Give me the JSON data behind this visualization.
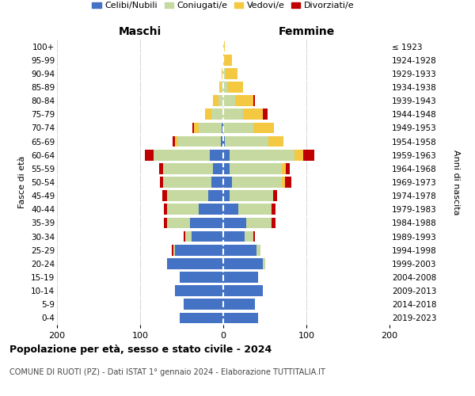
{
  "age_groups": [
    "0-4",
    "5-9",
    "10-14",
    "15-19",
    "20-24",
    "25-29",
    "30-34",
    "35-39",
    "40-44",
    "45-49",
    "50-54",
    "55-59",
    "60-64",
    "65-69",
    "70-74",
    "75-79",
    "80-84",
    "85-89",
    "90-94",
    "95-99",
    "100+"
  ],
  "birth_years": [
    "2019-2023",
    "2014-2018",
    "2009-2013",
    "2004-2008",
    "1999-2003",
    "1994-1998",
    "1989-1993",
    "1984-1988",
    "1979-1983",
    "1974-1978",
    "1969-1973",
    "1964-1968",
    "1959-1963",
    "1954-1958",
    "1949-1953",
    "1944-1948",
    "1939-1943",
    "1934-1938",
    "1929-1933",
    "1924-1928",
    "≤ 1923"
  ],
  "maschi_celibi": [
    52,
    48,
    58,
    52,
    68,
    58,
    38,
    40,
    30,
    18,
    14,
    12,
    16,
    3,
    2,
    0,
    0,
    0,
    0,
    0,
    0
  ],
  "maschi_coniugati": [
    0,
    0,
    0,
    0,
    0,
    2,
    8,
    28,
    38,
    50,
    58,
    60,
    68,
    52,
    28,
    14,
    6,
    3,
    1,
    0,
    0
  ],
  "maschi_vedovi": [
    0,
    0,
    0,
    0,
    0,
    0,
    0,
    0,
    0,
    0,
    0,
    0,
    0,
    3,
    5,
    8,
    6,
    2,
    1,
    0,
    0
  ],
  "maschi_divorziati": [
    0,
    0,
    0,
    0,
    0,
    2,
    2,
    3,
    3,
    5,
    4,
    5,
    10,
    3,
    2,
    0,
    0,
    0,
    0,
    0,
    0
  ],
  "femmine_nubili": [
    42,
    38,
    48,
    42,
    48,
    40,
    26,
    28,
    18,
    8,
    10,
    8,
    8,
    2,
    0,
    0,
    0,
    0,
    0,
    0,
    0
  ],
  "femmine_coniugate": [
    0,
    0,
    0,
    0,
    2,
    5,
    10,
    30,
    40,
    52,
    60,
    62,
    78,
    52,
    36,
    24,
    14,
    6,
    3,
    0,
    0
  ],
  "femmine_vedove": [
    0,
    0,
    0,
    0,
    0,
    0,
    0,
    0,
    0,
    0,
    4,
    5,
    10,
    18,
    25,
    24,
    22,
    18,
    14,
    10,
    2
  ],
  "femmine_divorziate": [
    0,
    0,
    0,
    0,
    0,
    0,
    2,
    5,
    5,
    5,
    8,
    5,
    14,
    0,
    0,
    5,
    2,
    0,
    0,
    0,
    0
  ],
  "color_celibi": "#4472c4",
  "color_coniugati": "#c5d9a0",
  "color_vedovi": "#f5c842",
  "color_divorziati": "#c00000",
  "legend_labels": [
    "Celibi/Nubili",
    "Coniugati/e",
    "Vedovi/e",
    "Divorziati/e"
  ],
  "title1": "Popolazione per età, sesso e stato civile - 2024",
  "title2": "COMUNE DI RUOTI (PZ) - Dati ISTAT 1° gennaio 2024 - Elaborazione TUTTITALIA.IT",
  "header_maschi": "Maschi",
  "header_femmine": "Femmine",
  "ylabel_left": "Fasce di età",
  "ylabel_right": "Anni di nascita",
  "xlim": 200
}
